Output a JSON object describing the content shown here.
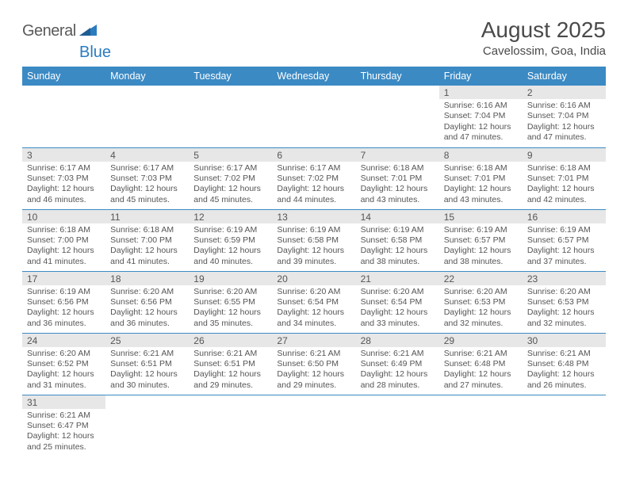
{
  "logo": {
    "word1": "General",
    "word2": "Blue"
  },
  "title": "August 2025",
  "subtitle": "Cavelossim, Goa, India",
  "colors": {
    "header_bg": "#3b8ac4",
    "header_fg": "#ffffff",
    "daynum_bg": "#e7e7e7",
    "row_border": "#3b8ac4",
    "text": "#555555",
    "logo_gray": "#5a5a5a",
    "logo_blue": "#2b7bbf"
  },
  "weekdays": [
    "Sunday",
    "Monday",
    "Tuesday",
    "Wednesday",
    "Thursday",
    "Friday",
    "Saturday"
  ],
  "weeks": [
    [
      {
        "n": "",
        "sr": "",
        "ss": "",
        "dl": ""
      },
      {
        "n": "",
        "sr": "",
        "ss": "",
        "dl": ""
      },
      {
        "n": "",
        "sr": "",
        "ss": "",
        "dl": ""
      },
      {
        "n": "",
        "sr": "",
        "ss": "",
        "dl": ""
      },
      {
        "n": "",
        "sr": "",
        "ss": "",
        "dl": ""
      },
      {
        "n": "1",
        "sr": "Sunrise: 6:16 AM",
        "ss": "Sunset: 7:04 PM",
        "dl": "Daylight: 12 hours and 47 minutes."
      },
      {
        "n": "2",
        "sr": "Sunrise: 6:16 AM",
        "ss": "Sunset: 7:04 PM",
        "dl": "Daylight: 12 hours and 47 minutes."
      }
    ],
    [
      {
        "n": "3",
        "sr": "Sunrise: 6:17 AM",
        "ss": "Sunset: 7:03 PM",
        "dl": "Daylight: 12 hours and 46 minutes."
      },
      {
        "n": "4",
        "sr": "Sunrise: 6:17 AM",
        "ss": "Sunset: 7:03 PM",
        "dl": "Daylight: 12 hours and 45 minutes."
      },
      {
        "n": "5",
        "sr": "Sunrise: 6:17 AM",
        "ss": "Sunset: 7:02 PM",
        "dl": "Daylight: 12 hours and 45 minutes."
      },
      {
        "n": "6",
        "sr": "Sunrise: 6:17 AM",
        "ss": "Sunset: 7:02 PM",
        "dl": "Daylight: 12 hours and 44 minutes."
      },
      {
        "n": "7",
        "sr": "Sunrise: 6:18 AM",
        "ss": "Sunset: 7:01 PM",
        "dl": "Daylight: 12 hours and 43 minutes."
      },
      {
        "n": "8",
        "sr": "Sunrise: 6:18 AM",
        "ss": "Sunset: 7:01 PM",
        "dl": "Daylight: 12 hours and 43 minutes."
      },
      {
        "n": "9",
        "sr": "Sunrise: 6:18 AM",
        "ss": "Sunset: 7:01 PM",
        "dl": "Daylight: 12 hours and 42 minutes."
      }
    ],
    [
      {
        "n": "10",
        "sr": "Sunrise: 6:18 AM",
        "ss": "Sunset: 7:00 PM",
        "dl": "Daylight: 12 hours and 41 minutes."
      },
      {
        "n": "11",
        "sr": "Sunrise: 6:18 AM",
        "ss": "Sunset: 7:00 PM",
        "dl": "Daylight: 12 hours and 41 minutes."
      },
      {
        "n": "12",
        "sr": "Sunrise: 6:19 AM",
        "ss": "Sunset: 6:59 PM",
        "dl": "Daylight: 12 hours and 40 minutes."
      },
      {
        "n": "13",
        "sr": "Sunrise: 6:19 AM",
        "ss": "Sunset: 6:58 PM",
        "dl": "Daylight: 12 hours and 39 minutes."
      },
      {
        "n": "14",
        "sr": "Sunrise: 6:19 AM",
        "ss": "Sunset: 6:58 PM",
        "dl": "Daylight: 12 hours and 38 minutes."
      },
      {
        "n": "15",
        "sr": "Sunrise: 6:19 AM",
        "ss": "Sunset: 6:57 PM",
        "dl": "Daylight: 12 hours and 38 minutes."
      },
      {
        "n": "16",
        "sr": "Sunrise: 6:19 AM",
        "ss": "Sunset: 6:57 PM",
        "dl": "Daylight: 12 hours and 37 minutes."
      }
    ],
    [
      {
        "n": "17",
        "sr": "Sunrise: 6:19 AM",
        "ss": "Sunset: 6:56 PM",
        "dl": "Daylight: 12 hours and 36 minutes."
      },
      {
        "n": "18",
        "sr": "Sunrise: 6:20 AM",
        "ss": "Sunset: 6:56 PM",
        "dl": "Daylight: 12 hours and 36 minutes."
      },
      {
        "n": "19",
        "sr": "Sunrise: 6:20 AM",
        "ss": "Sunset: 6:55 PM",
        "dl": "Daylight: 12 hours and 35 minutes."
      },
      {
        "n": "20",
        "sr": "Sunrise: 6:20 AM",
        "ss": "Sunset: 6:54 PM",
        "dl": "Daylight: 12 hours and 34 minutes."
      },
      {
        "n": "21",
        "sr": "Sunrise: 6:20 AM",
        "ss": "Sunset: 6:54 PM",
        "dl": "Daylight: 12 hours and 33 minutes."
      },
      {
        "n": "22",
        "sr": "Sunrise: 6:20 AM",
        "ss": "Sunset: 6:53 PM",
        "dl": "Daylight: 12 hours and 32 minutes."
      },
      {
        "n": "23",
        "sr": "Sunrise: 6:20 AM",
        "ss": "Sunset: 6:53 PM",
        "dl": "Daylight: 12 hours and 32 minutes."
      }
    ],
    [
      {
        "n": "24",
        "sr": "Sunrise: 6:20 AM",
        "ss": "Sunset: 6:52 PM",
        "dl": "Daylight: 12 hours and 31 minutes."
      },
      {
        "n": "25",
        "sr": "Sunrise: 6:21 AM",
        "ss": "Sunset: 6:51 PM",
        "dl": "Daylight: 12 hours and 30 minutes."
      },
      {
        "n": "26",
        "sr": "Sunrise: 6:21 AM",
        "ss": "Sunset: 6:51 PM",
        "dl": "Daylight: 12 hours and 29 minutes."
      },
      {
        "n": "27",
        "sr": "Sunrise: 6:21 AM",
        "ss": "Sunset: 6:50 PM",
        "dl": "Daylight: 12 hours and 29 minutes."
      },
      {
        "n": "28",
        "sr": "Sunrise: 6:21 AM",
        "ss": "Sunset: 6:49 PM",
        "dl": "Daylight: 12 hours and 28 minutes."
      },
      {
        "n": "29",
        "sr": "Sunrise: 6:21 AM",
        "ss": "Sunset: 6:48 PM",
        "dl": "Daylight: 12 hours and 27 minutes."
      },
      {
        "n": "30",
        "sr": "Sunrise: 6:21 AM",
        "ss": "Sunset: 6:48 PM",
        "dl": "Daylight: 12 hours and 26 minutes."
      }
    ],
    [
      {
        "n": "31",
        "sr": "Sunrise: 6:21 AM",
        "ss": "Sunset: 6:47 PM",
        "dl": "Daylight: 12 hours and 25 minutes."
      },
      {
        "n": "",
        "sr": "",
        "ss": "",
        "dl": ""
      },
      {
        "n": "",
        "sr": "",
        "ss": "",
        "dl": ""
      },
      {
        "n": "",
        "sr": "",
        "ss": "",
        "dl": ""
      },
      {
        "n": "",
        "sr": "",
        "ss": "",
        "dl": ""
      },
      {
        "n": "",
        "sr": "",
        "ss": "",
        "dl": ""
      },
      {
        "n": "",
        "sr": "",
        "ss": "",
        "dl": ""
      }
    ]
  ]
}
